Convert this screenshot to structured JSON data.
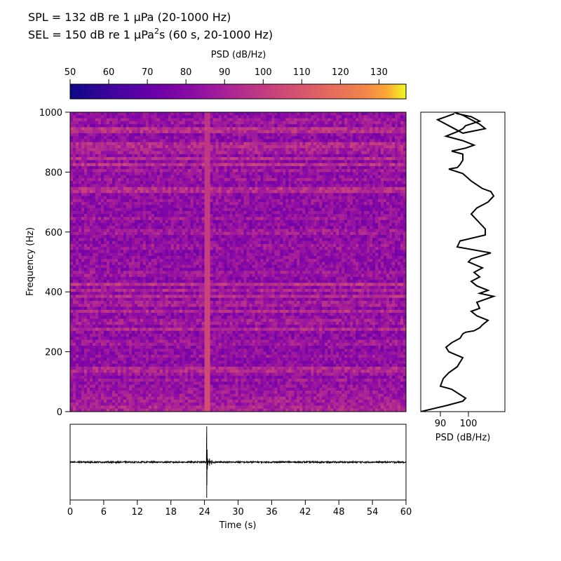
{
  "header": {
    "spl_line": "SPL = 132 dB re 1 µPa (20-1000 Hz)",
    "sel_prefix": "SEL = 150 dB re 1 µPa",
    "sel_superscript": "2",
    "sel_suffix": "s (60 s, 20-1000 Hz)"
  },
  "chart_data": [
    {
      "type": "heatmap",
      "name": "spectrogram",
      "ylabel": "Frequency (Hz)",
      "xlim": [
        0,
        60
      ],
      "ylim": [
        0,
        1000
      ],
      "yticks": [
        0,
        200,
        400,
        600,
        800,
        1000
      ],
      "colormap": "plasma",
      "colorbar": {
        "label": "PSD (dB/Hz)",
        "range": [
          50,
          137
        ],
        "ticks": [
          50,
          60,
          70,
          80,
          90,
          100,
          110,
          120,
          130
        ],
        "placement": "top"
      },
      "background_level": 82,
      "bands": [
        {
          "freq": 10,
          "level": 95
        },
        {
          "freq": 25,
          "level": 88
        },
        {
          "freq": 40,
          "level": 92
        },
        {
          "freq": 60,
          "level": 90
        },
        {
          "freq": 80,
          "level": 88
        },
        {
          "freq": 105,
          "level": 87
        },
        {
          "freq": 125,
          "level": 86
        },
        {
          "freq": 140,
          "level": 96
        },
        {
          "freq": 160,
          "level": 84
        },
        {
          "freq": 185,
          "level": 85
        },
        {
          "freq": 230,
          "level": 90
        },
        {
          "freq": 275,
          "level": 95
        },
        {
          "freq": 300,
          "level": 92
        },
        {
          "freq": 335,
          "level": 93
        },
        {
          "freq": 360,
          "level": 92
        },
        {
          "freq": 385,
          "level": 95
        },
        {
          "freq": 405,
          "level": 93
        },
        {
          "freq": 425,
          "level": 98
        },
        {
          "freq": 460,
          "level": 90
        },
        {
          "freq": 500,
          "level": 87
        },
        {
          "freq": 550,
          "level": 89
        },
        {
          "freq": 600,
          "level": 91
        },
        {
          "freq": 645,
          "level": 89
        },
        {
          "freq": 700,
          "level": 87
        },
        {
          "freq": 740,
          "level": 98
        },
        {
          "freq": 775,
          "level": 86
        },
        {
          "freq": 805,
          "level": 88
        },
        {
          "freq": 825,
          "level": 97
        },
        {
          "freq": 845,
          "level": 95
        },
        {
          "freq": 870,
          "level": 93
        },
        {
          "freq": 890,
          "level": 97
        },
        {
          "freq": 940,
          "level": 99
        },
        {
          "freq": 970,
          "level": 90
        }
      ],
      "transient": {
        "time": 24.5,
        "level": 112
      }
    },
    {
      "type": "line",
      "name": "psd-profile",
      "xlabel": "PSD (dB/Hz)",
      "xlim": [
        83,
        113
      ],
      "xticks": [
        90,
        100
      ],
      "ylim": [
        0,
        1000
      ],
      "x": [
        83,
        92,
        98,
        99,
        94,
        90,
        91,
        93,
        96,
        97,
        98,
        93,
        92,
        94,
        97,
        98,
        99,
        102,
        104,
        105,
        107,
        103,
        101,
        104,
        103,
        109,
        104,
        107,
        103,
        101,
        104,
        102,
        105,
        100,
        101,
        108,
        96,
        97,
        106,
        106,
        104,
        101,
        103,
        107,
        109,
        108,
        105,
        101,
        98,
        93,
        96,
        97,
        98,
        98,
        94,
        99,
        102,
        98,
        92,
        96,
        98,
        99,
        104,
        101,
        96,
        95,
        98,
        104,
        106,
        98,
        89,
        95
      ],
      "y": [
        0,
        20,
        35,
        45,
        75,
        85,
        110,
        130,
        150,
        165,
        180,
        200,
        215,
        230,
        245,
        260,
        265,
        270,
        280,
        290,
        305,
        320,
        335,
        345,
        365,
        385,
        395,
        405,
        420,
        435,
        450,
        465,
        480,
        500,
        510,
        530,
        550,
        570,
        590,
        610,
        630,
        660,
        680,
        700,
        720,
        735,
        745,
        770,
        795,
        810,
        815,
        825,
        840,
        860,
        870,
        880,
        890,
        905,
        920,
        935,
        945,
        955,
        970,
        985,
        995,
        1000,
        990,
        960,
        945,
        930,
        975,
        995
      ]
    },
    {
      "type": "line",
      "name": "waveform",
      "xlabel": "Time (s)",
      "xlim": [
        0,
        60
      ],
      "xticks": [
        0,
        6,
        12,
        18,
        24,
        30,
        36,
        42,
        48,
        54,
        60
      ],
      "ylim": [
        -1,
        1
      ],
      "noise_amplitude": 0.02,
      "events": [
        {
          "time": 24.4,
          "amplitude": 1.0
        },
        {
          "time": 24.9,
          "amplitude": 0.1
        },
        {
          "time": 25.3,
          "amplitude": 0.06
        }
      ]
    }
  ]
}
